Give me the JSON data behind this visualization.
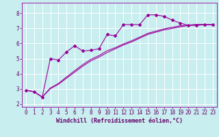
{
  "title": "",
  "xlabel": "Windchill (Refroidissement éolien,°C)",
  "ylabel": "",
  "xlim": [
    -0.5,
    23.5
  ],
  "ylim": [
    1.8,
    8.7
  ],
  "yticks": [
    2,
    3,
    4,
    5,
    6,
    7,
    8
  ],
  "xticks": [
    0,
    1,
    2,
    3,
    4,
    5,
    6,
    7,
    8,
    9,
    10,
    11,
    12,
    13,
    14,
    15,
    16,
    17,
    18,
    19,
    20,
    21,
    22,
    23
  ],
  "background_color": "#c8eef0",
  "grid_color": "#aadddd",
  "line_color": "#990099",
  "line1_x": [
    0,
    1,
    2,
    3,
    4,
    5,
    6,
    7,
    8,
    9,
    10,
    11,
    12,
    13,
    14,
    15,
    16,
    17,
    18,
    19,
    20,
    21,
    22,
    23
  ],
  "line1_y": [
    2.9,
    2.8,
    2.45,
    5.0,
    4.9,
    5.45,
    5.85,
    5.5,
    5.55,
    5.65,
    6.6,
    6.5,
    7.25,
    7.25,
    7.25,
    7.9,
    7.9,
    7.8,
    7.55,
    7.35,
    7.2,
    7.2,
    7.25,
    7.25
  ],
  "line2_x": [
    0,
    1,
    2,
    3,
    4,
    5,
    6,
    7,
    8,
    9,
    10,
    11,
    12,
    13,
    14,
    15,
    16,
    17,
    18,
    19,
    20,
    21,
    22,
    23
  ],
  "line2_y": [
    2.9,
    2.8,
    2.45,
    3.0,
    3.3,
    3.7,
    4.1,
    4.5,
    4.85,
    5.1,
    5.4,
    5.65,
    5.9,
    6.1,
    6.35,
    6.6,
    6.75,
    6.9,
    7.0,
    7.1,
    7.2,
    7.25,
    7.25,
    7.25
  ],
  "line3_x": [
    0,
    1,
    2,
    3,
    4,
    5,
    6,
    7,
    8,
    9,
    10,
    11,
    12,
    13,
    14,
    15,
    16,
    17,
    18,
    19,
    20,
    21,
    22,
    23
  ],
  "line3_y": [
    2.9,
    2.8,
    2.45,
    3.05,
    3.35,
    3.78,
    4.2,
    4.6,
    4.95,
    5.2,
    5.52,
    5.72,
    5.97,
    6.18,
    6.42,
    6.67,
    6.82,
    6.97,
    7.07,
    7.17,
    7.22,
    7.26,
    7.26,
    7.26
  ],
  "marker": "D",
  "markersize": 2.0,
  "linewidth": 0.8,
  "xlabel_fontsize": 6,
  "tick_fontsize": 5.5,
  "xlabel_color": "#660066",
  "tick_color": "#660066"
}
